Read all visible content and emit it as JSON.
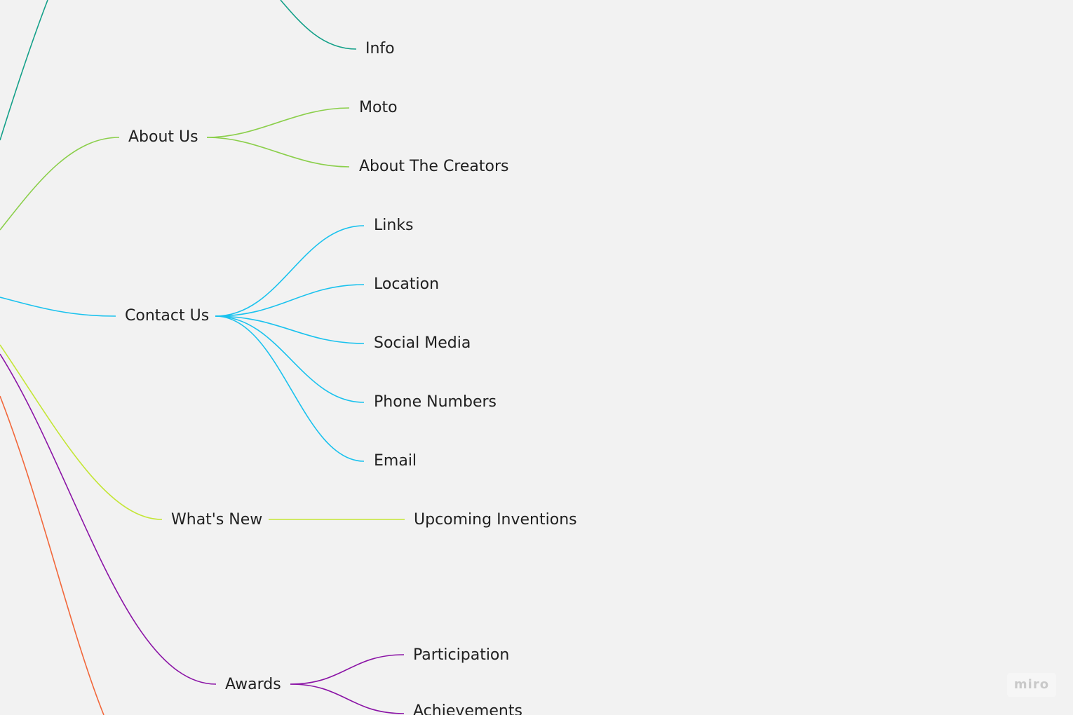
{
  "mindmap": {
    "branches": [
      {
        "id": "top",
        "color": "#13a089",
        "label": "",
        "children": [
          {
            "label": "Info"
          }
        ]
      },
      {
        "id": "about",
        "color": "#8bcf4b",
        "label": "About Us",
        "children": [
          {
            "label": "Moto"
          },
          {
            "label": "About The Creators"
          }
        ]
      },
      {
        "id": "contact",
        "color": "#1ac2ee",
        "label": "Contact Us",
        "children": [
          {
            "label": "Links"
          },
          {
            "label": "Location"
          },
          {
            "label": "Social Media"
          },
          {
            "label": "Phone Numbers"
          },
          {
            "label": "Email"
          }
        ]
      },
      {
        "id": "whatsnew",
        "color": "#c4e635",
        "label": "What's New",
        "children": [
          {
            "label": "Upcoming Inventions"
          }
        ]
      },
      {
        "id": "awards",
        "color": "#8b14a6",
        "label": "Awards",
        "children": [
          {
            "label": "Participation"
          },
          {
            "label": "Achievements"
          }
        ]
      },
      {
        "id": "bottom",
        "color": "#f2673a",
        "label": "",
        "children": []
      }
    ]
  },
  "watermark": {
    "text": "miro"
  }
}
